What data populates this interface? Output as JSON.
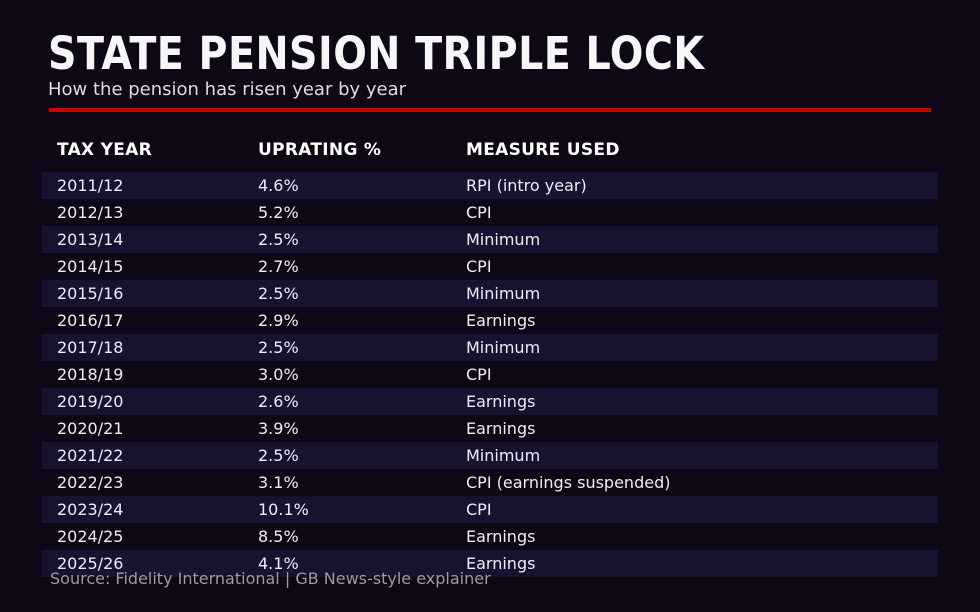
{
  "header": {
    "title": "STATE PENSION TRIPLE LOCK",
    "subtitle": "How the pension has risen year by year"
  },
  "colors": {
    "background": "#0d0716",
    "row_stripe": "#161230",
    "accent_red": "#cc0303",
    "title_text": "#f7f6f9",
    "body_text": "#efedf5",
    "muted_text": "#9e9aa8"
  },
  "table": {
    "columns": [
      "TAX YEAR",
      "UPRATING %",
      "MEASURE USED"
    ],
    "rows": [
      [
        "2011/12",
        "4.6%",
        "RPI (intro year)"
      ],
      [
        "2012/13",
        "5.2%",
        "CPI"
      ],
      [
        "2013/14",
        "2.5%",
        "Minimum"
      ],
      [
        "2014/15",
        "2.7%",
        "CPI"
      ],
      [
        "2015/16",
        "2.5%",
        "Minimum"
      ],
      [
        "2016/17",
        "2.9%",
        "Earnings"
      ],
      [
        "2017/18",
        "2.5%",
        "Minimum"
      ],
      [
        "2018/19",
        "3.0%",
        "CPI"
      ],
      [
        "2019/20",
        "2.6%",
        "Earnings"
      ],
      [
        "2020/21",
        "3.9%",
        "Earnings"
      ],
      [
        "2021/22",
        "2.5%",
        "Minimum"
      ],
      [
        "2022/23",
        "3.1%",
        "CPI (earnings suspended)"
      ],
      [
        "2023/24",
        "10.1%",
        "CPI"
      ],
      [
        "2024/25",
        "8.5%",
        "Earnings"
      ],
      [
        "2025/26",
        "4.1%",
        "Earnings"
      ]
    ]
  },
  "footer": {
    "source": "Source: Fidelity International | GB News-style explainer"
  },
  "chart_data": {
    "type": "table",
    "title": "STATE PENSION TRIPLE LOCK",
    "subtitle": "How the pension has risen year by year",
    "columns": [
      "TAX YEAR",
      "UPRATING %",
      "MEASURE USED"
    ],
    "categories": [
      "2011/12",
      "2012/13",
      "2013/14",
      "2014/15",
      "2015/16",
      "2016/17",
      "2017/18",
      "2018/19",
      "2019/20",
      "2020/21",
      "2021/22",
      "2022/23",
      "2023/24",
      "2024/25",
      "2025/26"
    ],
    "series": [
      {
        "name": "Uprating %",
        "values": [
          4.6,
          5.2,
          2.5,
          2.7,
          2.5,
          2.9,
          2.5,
          3.0,
          2.6,
          3.9,
          2.5,
          3.1,
          10.1,
          8.5,
          4.1
        ]
      },
      {
        "name": "Measure used",
        "values": [
          "RPI (intro year)",
          "CPI",
          "Minimum",
          "CPI",
          "Minimum",
          "Earnings",
          "Minimum",
          "CPI",
          "Earnings",
          "Earnings",
          "Minimum",
          "CPI (earnings suspended)",
          "CPI",
          "Earnings",
          "Earnings"
        ]
      }
    ],
    "source": "Source: Fidelity International | GB News-style explainer"
  }
}
